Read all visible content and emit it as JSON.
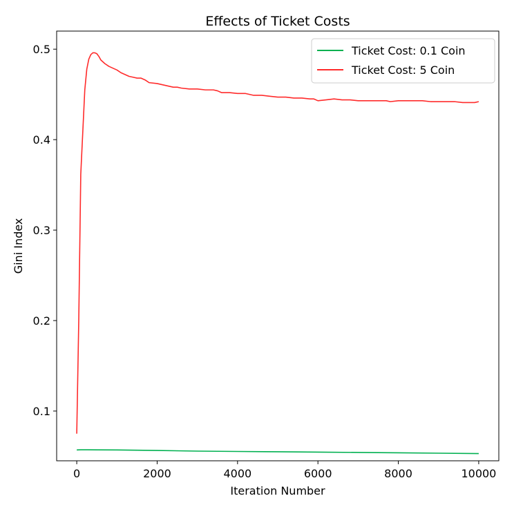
{
  "chart_data": {
    "type": "line",
    "title": "Effects of Ticket Costs",
    "xlabel": "Iteration Number",
    "ylabel": "Gini Index",
    "xlim": [
      -500,
      10500
    ],
    "ylim": [
      0.045,
      0.52
    ],
    "xticks": [
      0,
      2000,
      4000,
      6000,
      8000,
      10000
    ],
    "yticks": [
      0.1,
      0.2,
      0.3,
      0.4,
      0.5
    ],
    "grid": false,
    "legend_position": "top-right",
    "series": [
      {
        "name": "Ticket Cost: 0.1 Coin",
        "color": "#00b050",
        "x": [
          0,
          100,
          500,
          1000,
          2000,
          3000,
          4000,
          5000,
          6000,
          7000,
          8000,
          9000,
          10000
        ],
        "y": [
          0.057,
          0.0572,
          0.0571,
          0.057,
          0.0564,
          0.0557,
          0.0553,
          0.055,
          0.0546,
          0.0542,
          0.0538,
          0.0534,
          0.053
        ]
      },
      {
        "name": "Ticket Cost: 5 Coin",
        "color": "#ff2a2a",
        "x": [
          0,
          50,
          100,
          200,
          250,
          300,
          350,
          400,
          450,
          500,
          550,
          600,
          700,
          800,
          900,
          1000,
          1100,
          1200,
          1300,
          1400,
          1500,
          1600,
          1700,
          1800,
          2000,
          2200,
          2400,
          2500,
          2600,
          2800,
          3000,
          3200,
          3400,
          3500,
          3600,
          3800,
          4000,
          4200,
          4400,
          4600,
          4800,
          5000,
          5200,
          5400,
          5600,
          5800,
          5900,
          6000,
          6200,
          6400,
          6600,
          6800,
          7000,
          7200,
          7400,
          7600,
          7700,
          7800,
          8000,
          8200,
          8400,
          8600,
          8800,
          9000,
          9200,
          9400,
          9600,
          9800,
          9900,
          10000
        ],
        "y": [
          0.075,
          0.2,
          0.362,
          0.455,
          0.478,
          0.489,
          0.494,
          0.496,
          0.496,
          0.495,
          0.492,
          0.488,
          0.484,
          0.481,
          0.479,
          0.477,
          0.474,
          0.472,
          0.47,
          0.469,
          0.468,
          0.468,
          0.466,
          0.463,
          0.462,
          0.46,
          0.458,
          0.458,
          0.457,
          0.456,
          0.456,
          0.455,
          0.455,
          0.454,
          0.452,
          0.452,
          0.451,
          0.451,
          0.449,
          0.449,
          0.448,
          0.447,
          0.447,
          0.446,
          0.446,
          0.445,
          0.445,
          0.443,
          0.444,
          0.445,
          0.444,
          0.444,
          0.443,
          0.443,
          0.443,
          0.443,
          0.443,
          0.442,
          0.443,
          0.443,
          0.443,
          0.443,
          0.442,
          0.442,
          0.442,
          0.442,
          0.441,
          0.441,
          0.441,
          0.442
        ]
      }
    ]
  }
}
